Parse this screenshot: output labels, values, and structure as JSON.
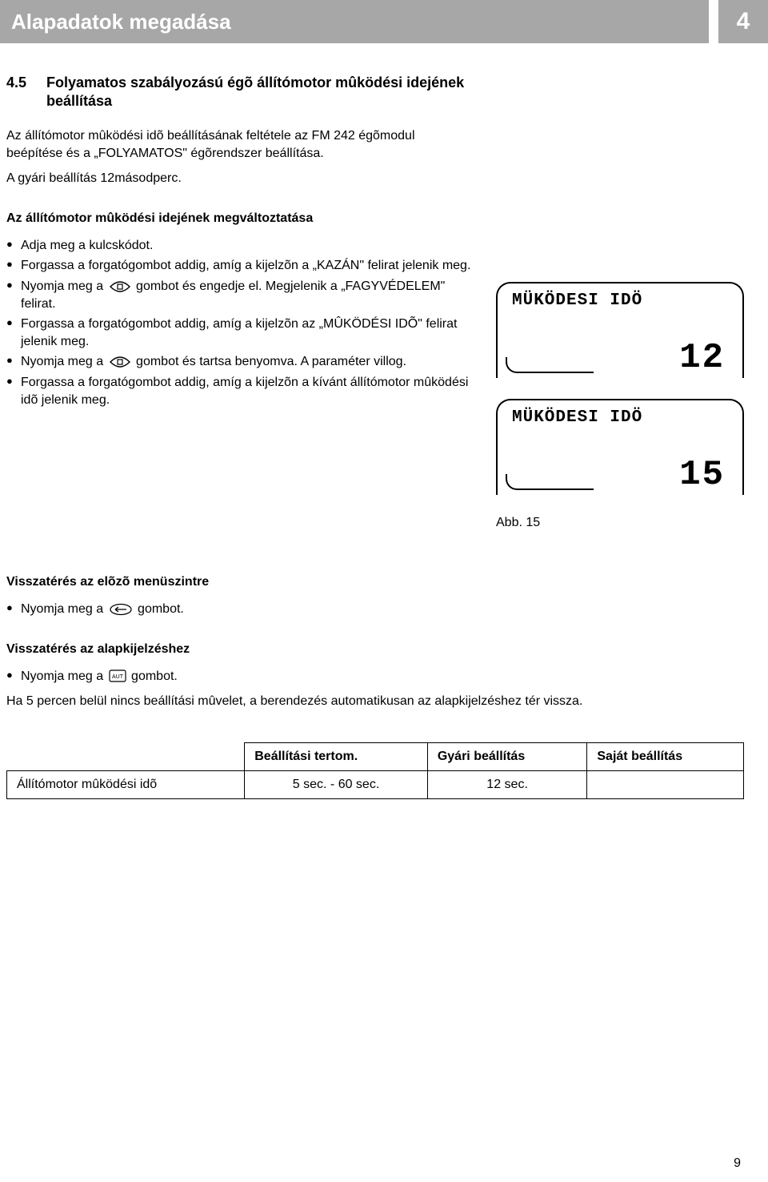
{
  "header": {
    "title": "Alapadatok megadása",
    "chapter_number": "4"
  },
  "section": {
    "number": "4.5",
    "title": "Folyamatos szabályozású égõ állítómotor mûködési idejének beállítása"
  },
  "intro_paragraphs": [
    "Az állítómotor mûködési idõ beállításának feltétele az FM 242 égõmodul beépítése és a „FOLYAMATOS\" égõrendszer beállítása.",
    "A gyári beállítás 12másodperc."
  ],
  "subsection1": {
    "heading": "Az állítómotor mûködési idejének megváltoztatása",
    "bullets": [
      "Adja meg a kulcskódot.",
      "Forgassa a forgatógombot addig, amíg a kijelzõn a „KAZÁN\" felirat jelenik meg.",
      "Nyomja meg a {eye} gombot és engedje el. Megjelenik a „FAGYVÉDELEM\" felirat.",
      "Forgassa a forgatógombot addig, amíg a kijelzõn az „MÛKÖDÉSI IDÕ\" felirat jelenik meg.",
      "Nyomja meg a {eye} gombot és tartsa benyomva. A paraméter villog.",
      "Forgassa a forgatógombot addig, amíg a kijelzõn a kívánt állítómotor mûködési idõ jelenik meg."
    ]
  },
  "displays": [
    {
      "label": "MÜKÖDESI IDÖ",
      "value": "12"
    },
    {
      "label": "MÜKÖDESI IDÖ",
      "value": "15"
    }
  ],
  "abb_caption": "Abb. 15",
  "return_prev": {
    "heading": "Visszatérés az elõzõ menüszintre",
    "bullet": "Nyomja meg a {back} gombot."
  },
  "return_base": {
    "heading": "Visszatérés az alapkijelzéshez",
    "bullet": "Nyomja meg a {aut} gombot.",
    "note": "Ha 5 percen belül nincs beállítási mûvelet, a berendezés automatikusan az alapkijelzéshez tér vissza."
  },
  "table": {
    "headers": [
      "",
      "Beállítási tertom.",
      "Gyári beállítás",
      "Saját beállítás"
    ],
    "row": [
      "Állítómotor mûködési idõ",
      "5 sec. - 60 sec.",
      "12 sec.",
      ""
    ]
  },
  "page_number": "9",
  "colors": {
    "header_bg": "#a7a7a7",
    "header_fg": "#ffffff",
    "text": "#000000",
    "page_bg": "#ffffff"
  }
}
